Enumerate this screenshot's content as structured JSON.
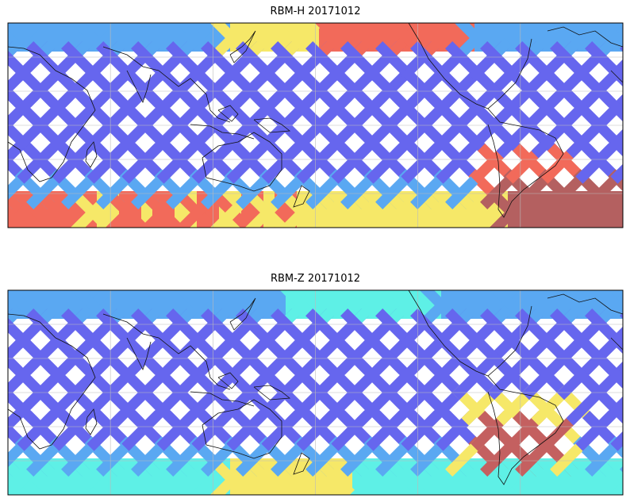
{
  "figure": {
    "panels": [
      {
        "title": "RBM-H 20171012",
        "palette": {
          "low": "#6666ee",
          "mid_low": "#5aa8f2",
          "mid": "#5ef0e6",
          "mid_high": "#f6e868",
          "high": "#f26a5a",
          "max": "#b46060"
        },
        "hotspots": [
          "south-atlantic",
          "southern-band",
          "north-pacific-band",
          "north-atlantic-band"
        ]
      },
      {
        "title": "RBM-Z 20171012",
        "palette": {
          "low": "#6666ee",
          "mid_low": "#5aa8f2",
          "mid": "#5ef0e6",
          "mid_high": "#f6e868",
          "high": "#f26a5a",
          "max": "#c46060"
        },
        "hotspots": [
          "south-atlantic-core",
          "southern-band-light",
          "north-band-light"
        ]
      }
    ],
    "gridlines": true,
    "coastlines": true
  }
}
